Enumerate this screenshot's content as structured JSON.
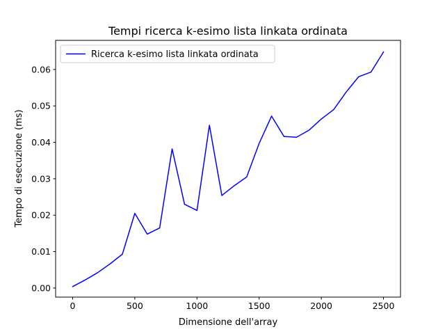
{
  "chart_data": {
    "type": "line",
    "title": "Tempi ricerca k-esimo lista linkata ordinata",
    "xlabel": "Dimensione dell'array",
    "ylabel": "Tempo di esecuzione (ms)",
    "xlim": [
      -137,
      2637
    ],
    "ylim": [
      -0.0025,
      0.068
    ],
    "xticks": [
      0,
      500,
      1000,
      1500,
      2000,
      2500
    ],
    "yticks": [
      0.0,
      0.01,
      0.02,
      0.03,
      0.04,
      0.05,
      0.06
    ],
    "xtick_labels": [
      "0",
      "500",
      "1000",
      "1500",
      "2000",
      "2500"
    ],
    "ytick_labels": [
      "0.00",
      "0.01",
      "0.02",
      "0.03",
      "0.04",
      "0.05",
      "0.06"
    ],
    "legend_position": "top-left",
    "grid": false,
    "series": [
      {
        "name": "Ricerca k-esimo lista linkata ordinata",
        "color": "#0000ff",
        "x": [
          0,
          100,
          200,
          300,
          400,
          500,
          600,
          700,
          800,
          900,
          1000,
          1100,
          1200,
          1300,
          1400,
          1500,
          1600,
          1700,
          1800,
          1900,
          2000,
          2100,
          2200,
          2300,
          2400,
          2500
        ],
        "y": [
          0.0004,
          0.0022,
          0.0042,
          0.0066,
          0.0093,
          0.0205,
          0.0148,
          0.0165,
          0.0382,
          0.023,
          0.0213,
          0.0447,
          0.0254,
          0.0281,
          0.0305,
          0.0397,
          0.0472,
          0.0416,
          0.0414,
          0.0433,
          0.0464,
          0.049,
          0.0538,
          0.058,
          0.0593,
          0.0648
        ]
      }
    ]
  }
}
